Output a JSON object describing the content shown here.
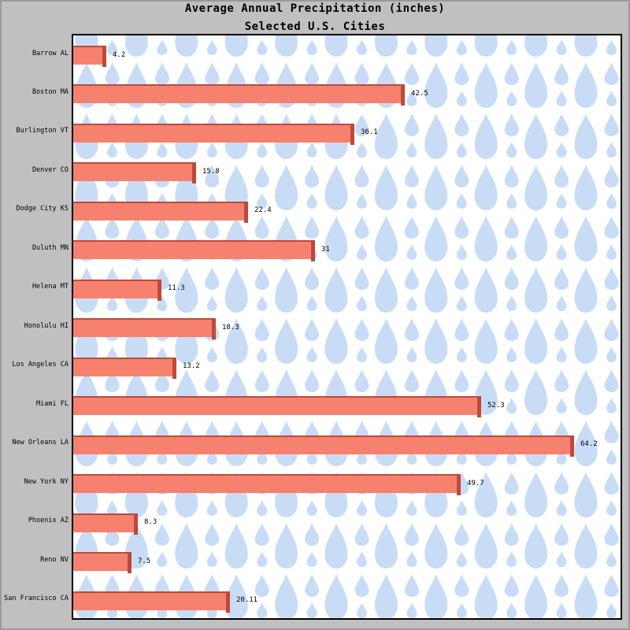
{
  "window": {
    "background_color": "#c0c0c0",
    "border_color": "#9a9a9a"
  },
  "chart_data": {
    "type": "bar",
    "orientation": "horizontal",
    "title": "Average Annual Precipitation (inches)",
    "subtitle": "Selected U.S. Cities",
    "xlabel": "",
    "ylabel": "",
    "categories": [
      "Barrow AL",
      "Boston MA",
      "Burlington VT",
      "Denver CO",
      "Dodge City KS",
      "Duluth MN",
      "Helena MT",
      "Honolulu HI",
      "Los Angeles CA",
      "Miami FL",
      "New Orleans LA",
      "New York NY",
      "Phoenix AZ",
      "Reno NV",
      "San Francisco CA"
    ],
    "values": [
      4.2,
      42.5,
      36.1,
      15.8,
      22.4,
      31,
      11.3,
      18.3,
      13.2,
      52.3,
      64.2,
      49.7,
      8.3,
      7.5,
      20.11
    ],
    "value_labels": [
      "4.2",
      "42.5",
      "36.1",
      "15.8",
      "22.4",
      "31",
      "11.3",
      "18.3",
      "13.2",
      "52.3",
      "64.2",
      "49.7",
      "8.3",
      "7.5",
      "20.11"
    ],
    "xlim": [
      0,
      70.2
    ],
    "grid": false,
    "legend": null,
    "axis_labels_shown": false,
    "bar_fill_color": "#f5816e",
    "bar_border_color": "#bc4a3c",
    "value_label_color": "#000000",
    "plot_background_color": "#ffffff",
    "plot_border_color": "#000000",
    "pattern": {
      "name": "raindrops",
      "drop_color": "#c8dcf6"
    }
  }
}
